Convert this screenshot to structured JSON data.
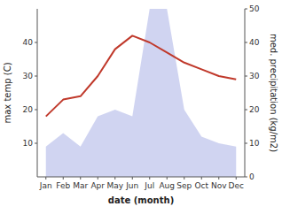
{
  "chart_data": {
    "type": "line",
    "xlabel": "date (month)",
    "ylabel": "max temp (C)",
    "y2label": "med. precipitation (kg/m2)",
    "categories": [
      "Jan",
      "Feb",
      "Mar",
      "Apr",
      "May",
      "Jun",
      "Jul",
      "Aug",
      "Sep",
      "Oct",
      "Nov",
      "Dec"
    ],
    "ylim": [
      0,
      50
    ],
    "yticks": [
      10,
      20,
      30,
      40
    ],
    "y2lim": [
      0,
      50
    ],
    "y2ticks": [
      0,
      10,
      20,
      30,
      40,
      50
    ],
    "series": [
      {
        "type": "area",
        "axis": "y2",
        "color": "#b0b8e8",
        "values": [
          9,
          13,
          9,
          18,
          20,
          18,
          50,
          50,
          20,
          12,
          10,
          9
        ]
      },
      {
        "type": "line",
        "color": "#c0392b",
        "values": [
          18,
          23,
          24,
          30,
          38,
          42,
          40,
          37,
          34,
          32,
          30,
          29
        ]
      }
    ]
  }
}
